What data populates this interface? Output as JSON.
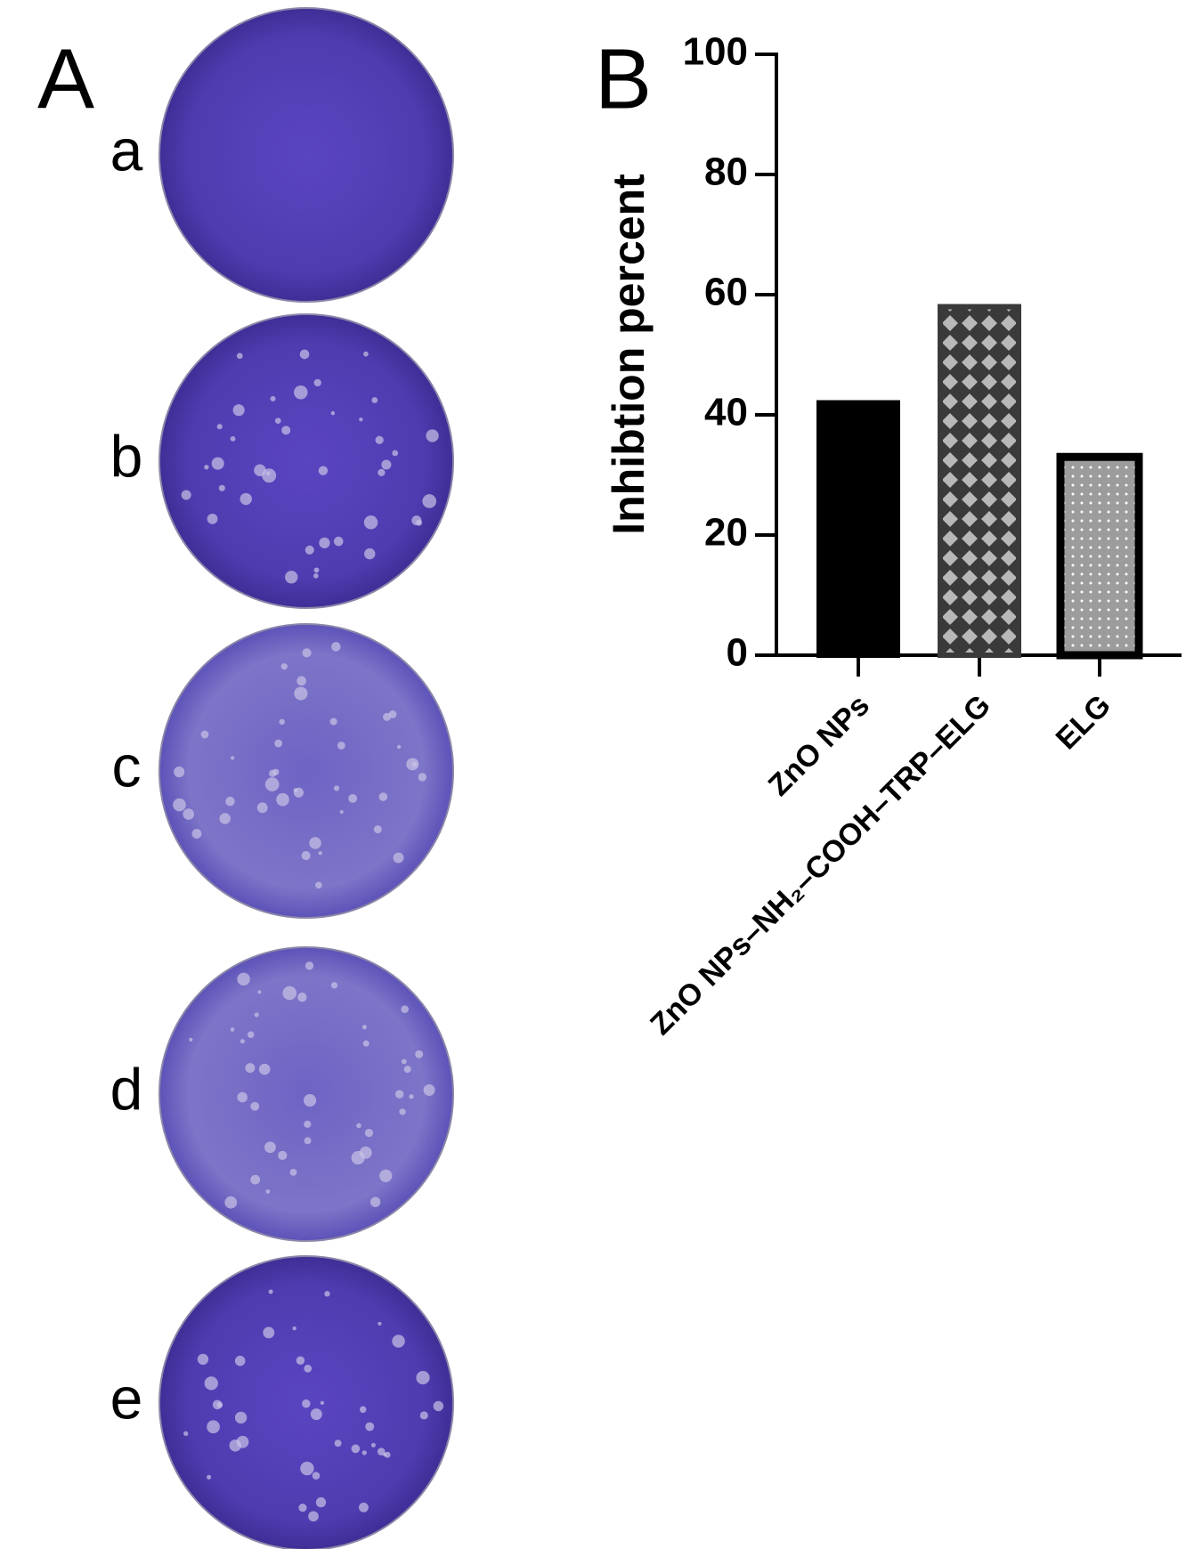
{
  "figure": {
    "panel_a_label": "A",
    "panel_b_label": "B",
    "dish_labels": [
      "a",
      "b",
      "c",
      "d",
      "e"
    ]
  },
  "chart_data": {
    "type": "bar",
    "y_label": "Inhibtion percent",
    "categories": [
      "ZnO NPs",
      "ZnO NPs–NH₂–COOH–TRP–ELG",
      "ELG"
    ],
    "values": [
      42,
      58,
      33
    ],
    "colors": [
      "#000000",
      "#3a3a3a",
      "#9c9c9c"
    ],
    "ylim": [
      0,
      100
    ],
    "yticks": [
      0,
      20,
      40,
      60,
      80,
      100
    ],
    "grid": false
  }
}
